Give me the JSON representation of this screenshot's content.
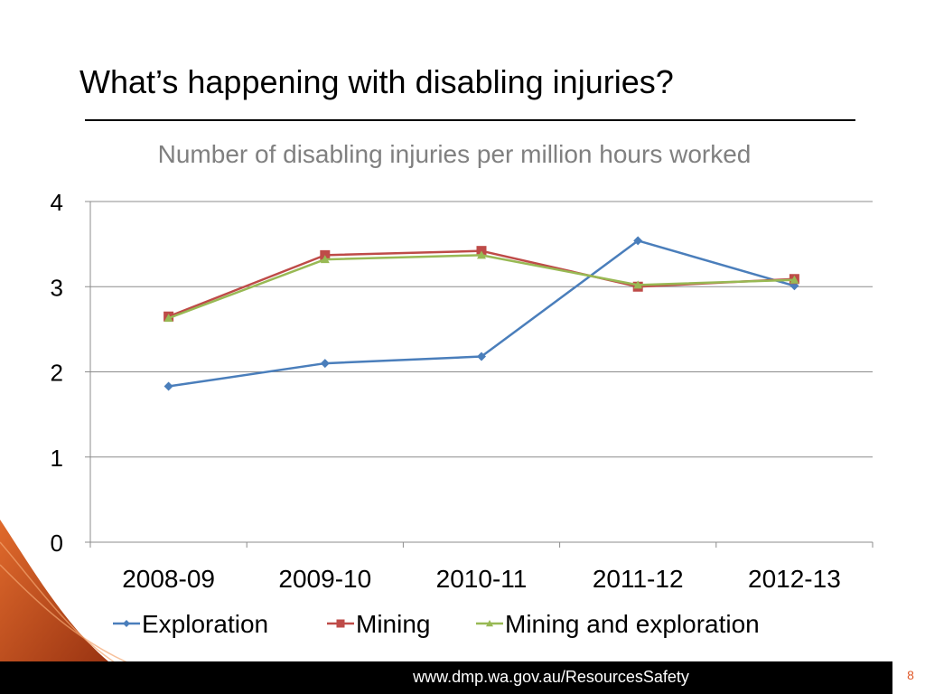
{
  "slide": {
    "title": "What’s happening with disabling injuries?",
    "footer_url": "www.dmp.wa.gov.au/ResourcesSafety",
    "page_number": "8"
  },
  "colors": {
    "accent_orange": "#c8531f",
    "footer_background": "#000000",
    "page_number": "#e0592a",
    "chart_title": "#808080"
  },
  "chart_data": {
    "type": "line",
    "title": "Number of disabling injuries per million hours worked",
    "categories": [
      "2008-09",
      "2009-10",
      "2010-11",
      "2011-12",
      "2012-13"
    ],
    "y_ticks": [
      "0",
      "1",
      "2",
      "3",
      "4"
    ],
    "ylim": [
      0,
      4
    ],
    "grid": true,
    "legend_position": "bottom",
    "series": [
      {
        "name": "Exploration",
        "values": [
          1.83,
          2.1,
          2.18,
          3.54,
          3.01
        ],
        "color": "#4a7ebb",
        "marker": "diamond"
      },
      {
        "name": "Mining",
        "values": [
          2.65,
          3.37,
          3.42,
          3.0,
          3.09
        ],
        "color": "#be4b48",
        "marker": "square"
      },
      {
        "name": "Mining and exploration",
        "values": [
          2.63,
          3.32,
          3.37,
          3.02,
          3.08
        ],
        "color": "#98b954",
        "marker": "triangle"
      }
    ]
  }
}
